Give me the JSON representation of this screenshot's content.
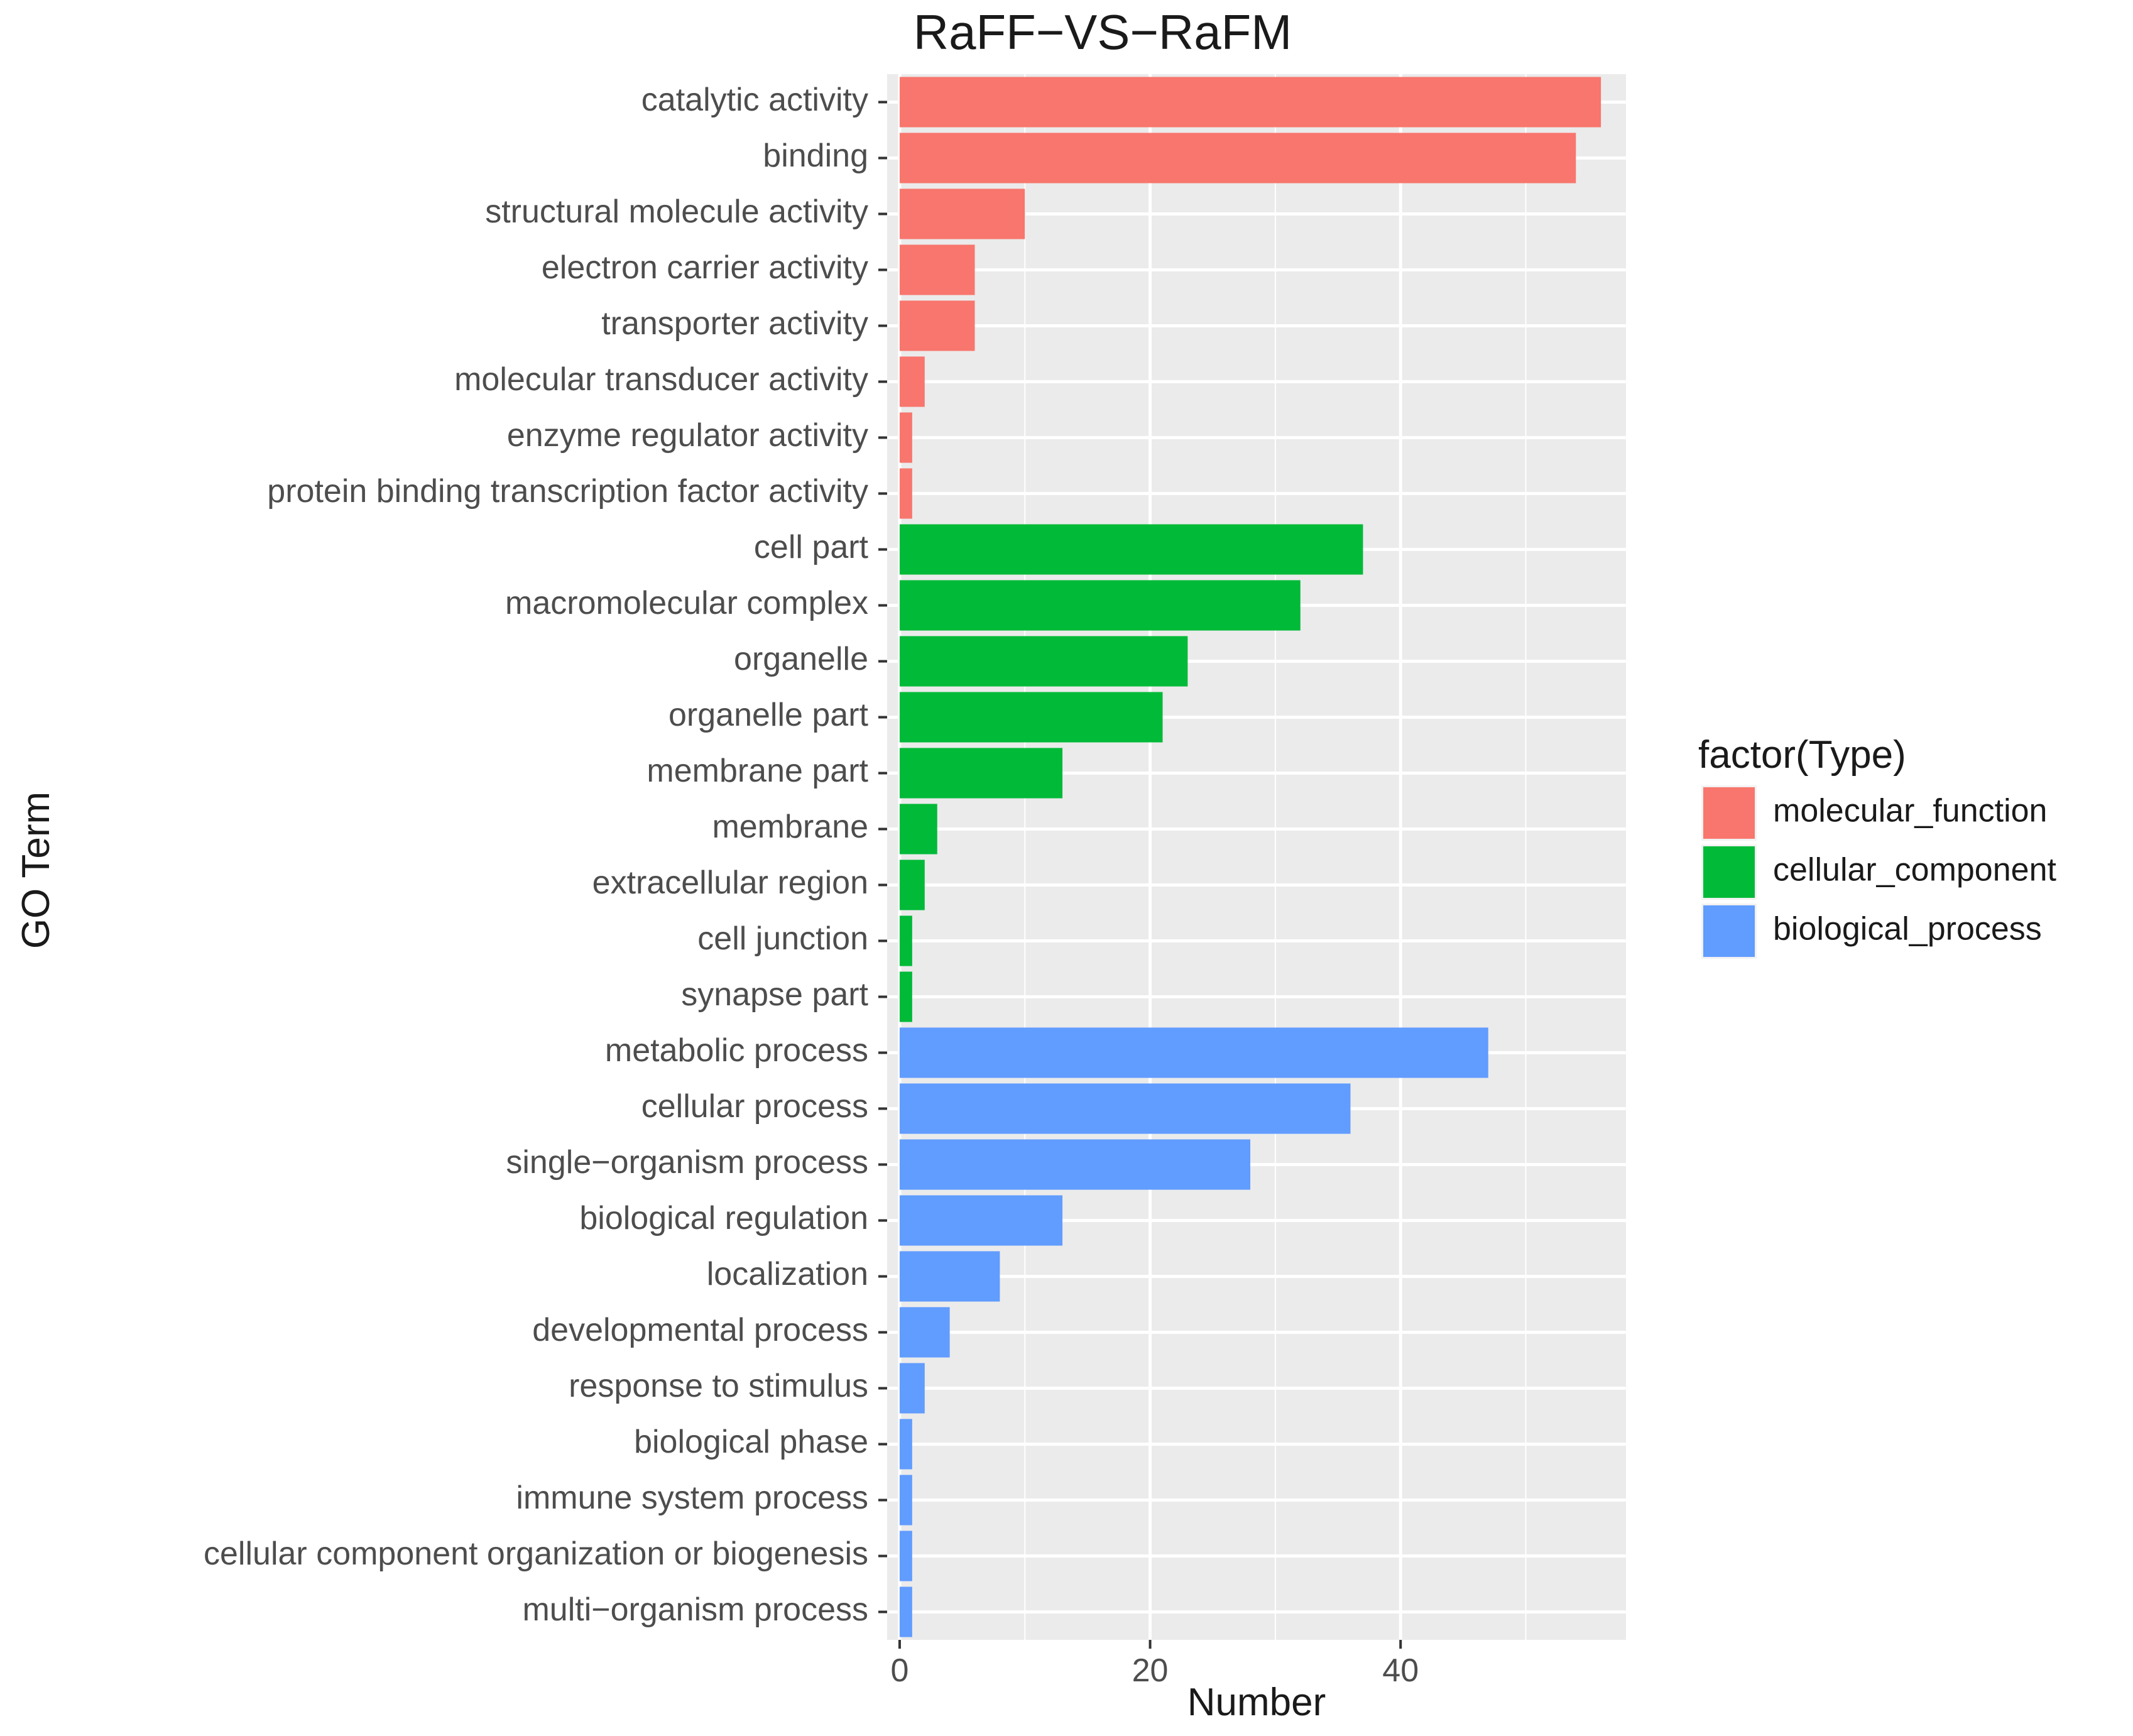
{
  "chart_data": {
    "type": "bar",
    "orientation": "horizontal",
    "title": "RaFF−VS−RaFM",
    "xlabel": "Number",
    "ylabel": "GO Term",
    "xlim": [
      -1,
      58
    ],
    "x_ticks": [
      0,
      20,
      40
    ],
    "grid": true,
    "legend": {
      "title": "factor(Type)",
      "position": "right",
      "entries": [
        {
          "name": "molecular_function",
          "color": "#F8766D"
        },
        {
          "name": "cellular_component",
          "color": "#00BA38"
        },
        {
          "name": "biological_process",
          "color": "#619CFF"
        }
      ]
    },
    "categories": [
      "catalytic activity",
      "binding",
      "structural molecule activity",
      "electron carrier activity",
      "transporter activity",
      "molecular transducer activity",
      "enzyme regulator activity",
      "protein binding transcription factor activity",
      "cell part",
      "macromolecular complex",
      "organelle",
      "organelle part",
      "membrane part",
      "membrane",
      "extracellular region",
      "cell junction",
      "synapse part",
      "metabolic process",
      "cellular process",
      "single−organism process",
      "biological regulation",
      "localization",
      "developmental process",
      "response to stimulus",
      "biological phase",
      "immune system process",
      "cellular component organization or biogenesis",
      "multi−organism process"
    ],
    "values": [
      56,
      54,
      10,
      6,
      6,
      2,
      1,
      1,
      37,
      32,
      23,
      21,
      13,
      3,
      2,
      1,
      1,
      47,
      36,
      28,
      13,
      8,
      4,
      2,
      1,
      1,
      1,
      1
    ],
    "groups": [
      "molecular_function",
      "molecular_function",
      "molecular_function",
      "molecular_function",
      "molecular_function",
      "molecular_function",
      "molecular_function",
      "molecular_function",
      "cellular_component",
      "cellular_component",
      "cellular_component",
      "cellular_component",
      "cellular_component",
      "cellular_component",
      "cellular_component",
      "cellular_component",
      "cellular_component",
      "biological_process",
      "biological_process",
      "biological_process",
      "biological_process",
      "biological_process",
      "biological_process",
      "biological_process",
      "biological_process",
      "biological_process",
      "biological_process",
      "biological_process"
    ]
  }
}
